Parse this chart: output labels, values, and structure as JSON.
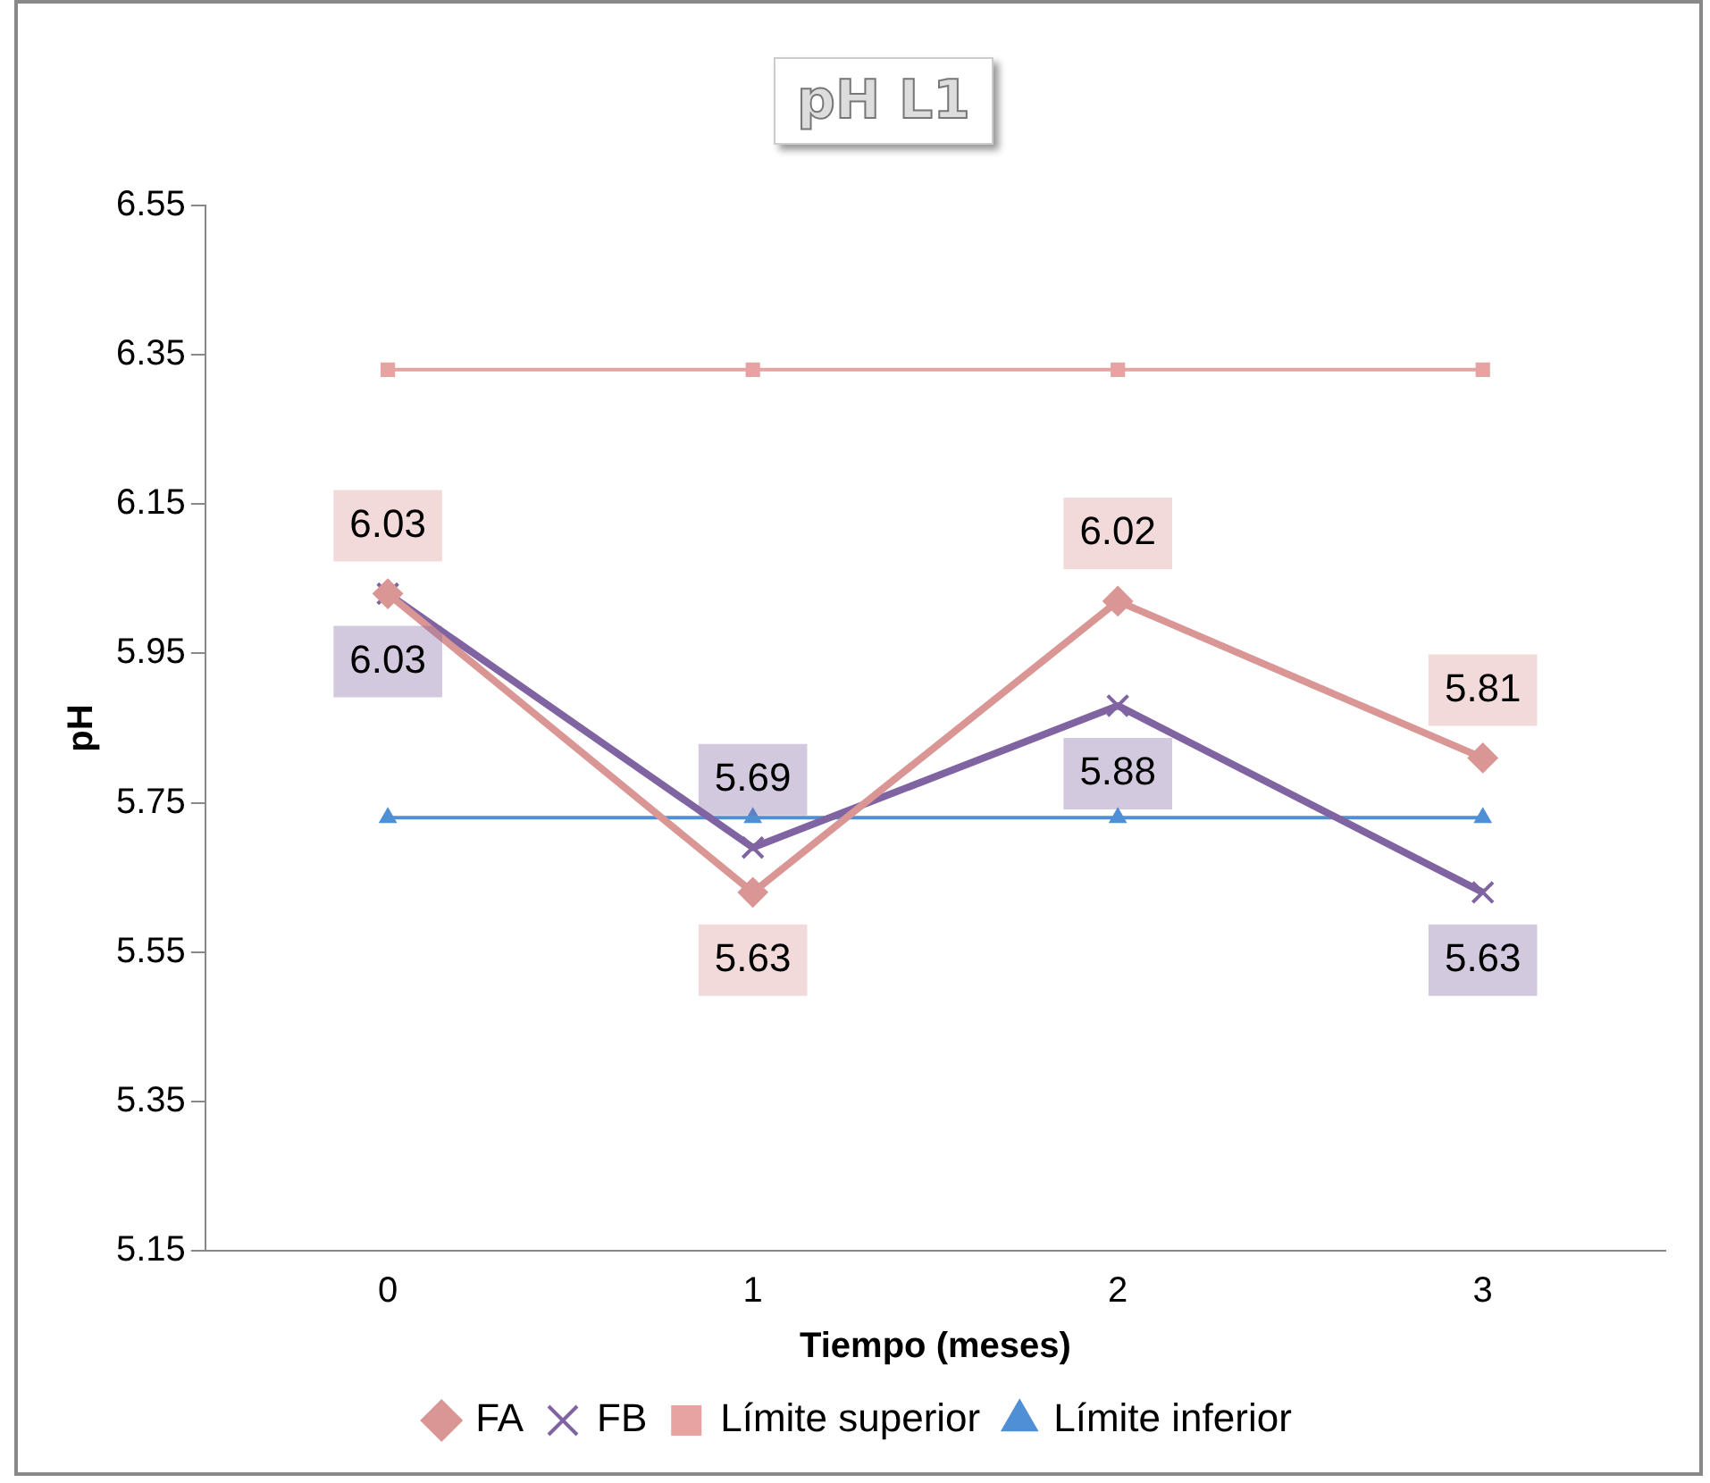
{
  "chart_data": {
    "type": "line",
    "title": "pH L1",
    "xlabel": "Tiempo (meses)",
    "ylabel": "pH",
    "categories": [
      "0",
      "1",
      "2",
      "3"
    ],
    "ylim": [
      5.15,
      6.55
    ],
    "yticks": [
      5.15,
      5.35,
      5.55,
      5.75,
      5.95,
      6.15,
      6.35,
      6.55
    ],
    "grid": false,
    "legend": "bottom",
    "line_style": "solid",
    "series": [
      {
        "name": "FA",
        "color": "#d99694",
        "marker": "diamond",
        "values": [
          6.03,
          5.63,
          6.02,
          5.81
        ],
        "value_labels": [
          "6.03",
          "5.63",
          "6.02",
          "5.81"
        ]
      },
      {
        "name": "FB",
        "color": "#8064a2",
        "marker": "cross",
        "values": [
          6.03,
          5.69,
          5.88,
          5.63
        ],
        "value_labels": [
          "6.03",
          "5.69",
          "5.88",
          "5.63"
        ]
      },
      {
        "name": "Límite superior",
        "color": "#e6a3a1",
        "marker": "square",
        "values": [
          6.33,
          6.33,
          6.33,
          6.33
        ]
      },
      {
        "name": "Límite inferior",
        "color": "#4f8fd6",
        "marker": "triangle",
        "values": [
          5.73,
          5.73,
          5.73,
          5.73
        ]
      }
    ]
  }
}
